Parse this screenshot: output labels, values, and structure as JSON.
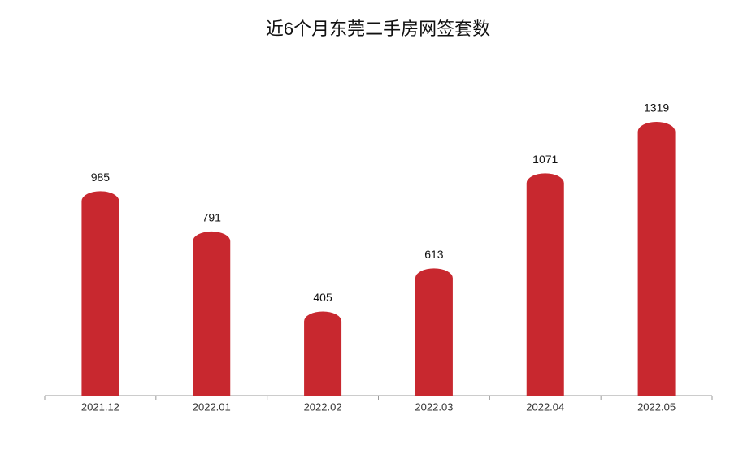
{
  "chart_data": {
    "type": "bar",
    "title": "近6个月东莞二手房网签套数",
    "categories": [
      "2021.12",
      "2022.01",
      "2022.02",
      "2022.03",
      "2022.04",
      "2022.05"
    ],
    "values": [
      985,
      791,
      405,
      613,
      1071,
      1319
    ],
    "color": "#c8282f"
  }
}
